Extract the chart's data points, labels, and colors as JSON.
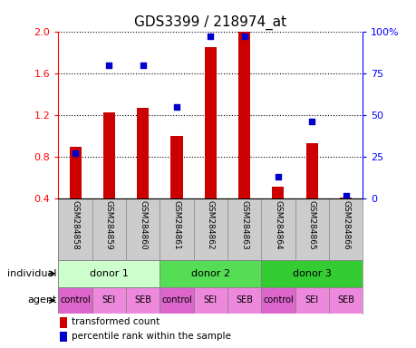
{
  "title": "GDS3399 / 218974_at",
  "samples": [
    "GSM284858",
    "GSM284859",
    "GSM284860",
    "GSM284861",
    "GSM284862",
    "GSM284863",
    "GSM284864",
    "GSM284865",
    "GSM284866"
  ],
  "bar_values": [
    0.9,
    1.23,
    1.27,
    1.0,
    1.85,
    2.0,
    0.52,
    0.93,
    0.41
  ],
  "percentile_values": [
    27,
    80,
    80,
    55,
    97,
    97,
    13,
    46,
    2
  ],
  "ylim_left": [
    0.4,
    2.0
  ],
  "ylim_right": [
    0,
    100
  ],
  "yticks_left": [
    0.4,
    0.8,
    1.2,
    1.6,
    2.0
  ],
  "yticks_right": [
    0,
    25,
    50,
    75,
    100
  ],
  "bar_color": "#cc0000",
  "dot_color": "#0000cc",
  "bar_width": 0.35,
  "individuals": [
    {
      "label": "donor 1",
      "span": [
        0,
        3
      ],
      "color": "#ccffcc"
    },
    {
      "label": "donor 2",
      "span": [
        3,
        6
      ],
      "color": "#55dd55"
    },
    {
      "label": "donor 3",
      "span": [
        6,
        9
      ],
      "color": "#33cc33"
    }
  ],
  "agents": [
    "control",
    "SEI",
    "SEB",
    "control",
    "SEI",
    "SEB",
    "control",
    "SEI",
    "SEB"
  ],
  "agent_colors": [
    "#dd66cc",
    "#ee88dd",
    "#ee88dd",
    "#dd66cc",
    "#ee88dd",
    "#ee88dd",
    "#dd66cc",
    "#ee88dd",
    "#ee88dd"
  ],
  "gsm_bg_color": "#cccccc",
  "legend_bar_label": "transformed count",
  "legend_dot_label": "percentile rank within the sample",
  "title_fontsize": 11
}
